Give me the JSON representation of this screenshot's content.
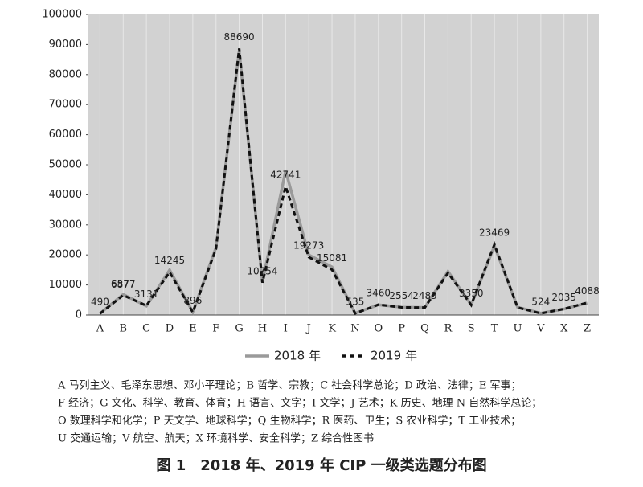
{
  "chart_data": {
    "type": "line",
    "categories": [
      "A",
      "B",
      "C",
      "D",
      "E",
      "F",
      "G",
      "H",
      "I",
      "J",
      "K",
      "N",
      "O",
      "P",
      "Q",
      "R",
      "S",
      "T",
      "U",
      "V",
      "X",
      "Z"
    ],
    "series": [
      {
        "name": "2018 年",
        "color": "#9a9a9a",
        "dash": false,
        "values": [
          500,
          6877,
          3000,
          15000,
          1000,
          22500,
          88000,
          11000,
          48000,
          20000,
          16000,
          600,
          3400,
          2600,
          2500,
          14500,
          3400,
          23000,
          2600,
          600,
          2000,
          4000
        ],
        "value_labels": [
          null,
          "6877",
          null,
          null,
          null,
          null,
          null,
          null,
          null,
          null,
          null,
          null,
          null,
          null,
          null,
          null,
          null,
          null,
          null,
          null,
          null,
          null
        ]
      },
      {
        "name": "2019 年",
        "color": "#111111",
        "dash": true,
        "values": [
          490,
          6577,
          3131,
          14245,
          896,
          22000,
          88690,
          10754,
          42741,
          19273,
          15081,
          535,
          3460,
          2554,
          2483,
          14000,
          3350,
          23469,
          2500,
          524,
          2035,
          4088
        ],
        "value_labels": [
          "490",
          "6577",
          "3131",
          "14245",
          "896",
          null,
          "88690",
          "10754",
          "42741",
          "19273",
          "15081",
          "535",
          "3460",
          "2554",
          "2483",
          null,
          "3350",
          "23469",
          null,
          "524",
          "2035",
          "4088"
        ]
      }
    ],
    "ylim": [
      0,
      100000
    ],
    "yticks": [
      0,
      10000,
      20000,
      30000,
      40000,
      50000,
      60000,
      70000,
      80000,
      90000,
      100000
    ],
    "notes": [
      "A 马列主义、毛泽东思想、邓小平理论；B 哲学、宗教；C 社会科学总论；D 政治、法律；E 军事；",
      "F 经济；G 文化、科学、教育、体育；H 语言、文字；I 文学；J 艺术；K 历史、地理 N 自然科学总论；",
      "O 数理科学和化学；P 天文学、地球科学；Q 生物科学；R 医药、卫生；S 农业科学；T 工业技术；",
      "U 交通运输；V 航空、航天；X 环境科学、安全科学；Z 综合性图书"
    ],
    "caption": "图 1　2018 年、2019 年 CIP 一级类选题分布图"
  }
}
